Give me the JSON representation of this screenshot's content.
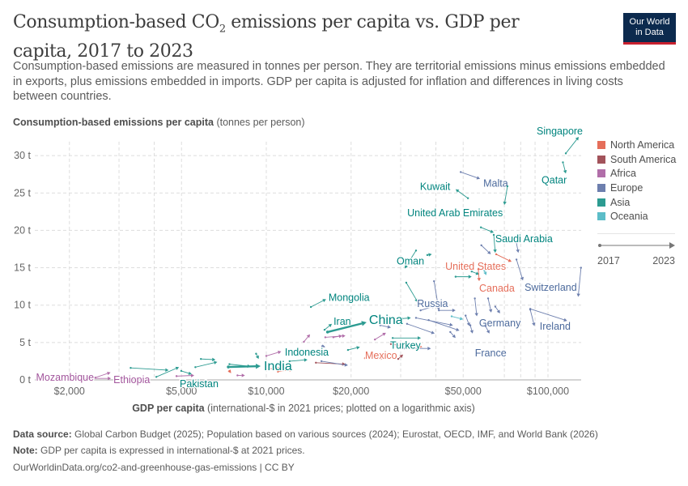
{
  "header": {
    "title_pre": "Consumption-based CO",
    "title_sub": "2",
    "title_post": " emissions per capita vs. GDP per capita, 2017 to 2023",
    "subtitle": "Consumption-based emissions are measured in tonnes per person. They are territorial emissions minus emissions embedded in exports, plus emissions embedded in imports. GDP per capita is adjusted for inflation and differences in living costs between countries.",
    "logo_line1": "Our World",
    "logo_line2": "in Data"
  },
  "footer": {
    "source_label": "Data source:",
    "source": " Global Carbon Budget (2025); Population based on various sources (2024); Eurostat, OECD, IMF, and World Bank (2026)",
    "note_label": "Note:",
    "note": " GDP per capita is expressed in international-$ at 2021 prices.",
    "link": "OurWorldinData.org/co2-and-greenhouse-gas-emissions | CC BY"
  },
  "legend": {
    "items": [
      {
        "label": "North America",
        "color": "#e56e5a"
      },
      {
        "label": "South America",
        "color": "#a2535b"
      },
      {
        "label": "Africa",
        "color": "#b16ea9"
      },
      {
        "label": "Europe",
        "color": "#6d7fae"
      },
      {
        "label": "Asia",
        "color": "#2c9b91"
      },
      {
        "label": "Oceania",
        "color": "#5cbdc8"
      }
    ],
    "timeline_start": "2017",
    "timeline_end": "2023"
  },
  "chart_data": {
    "type": "scatter",
    "subtype": "connected arrows (start year to end year)",
    "ylabel_bold": "Consumption-based emissions per capita",
    "ylabel_rest": " (tonnes per person)",
    "xlabel_bold": "GDP per capita",
    "xlabel_rest": " (international-$ in 2021 prices; plotted on a logarithmic axis)",
    "x_scale": "log",
    "xlim": [
      1500,
      131000
    ],
    "ylim": [
      0,
      31
    ],
    "grid": true,
    "legend_position": "right",
    "x_ticks": [
      {
        "value": 2000,
        "label": "$2,000"
      },
      {
        "value": 5000,
        "label": "$5,000"
      },
      {
        "value": 10000,
        "label": "$10,000"
      },
      {
        "value": 20000,
        "label": "$20,000"
      },
      {
        "value": 50000,
        "label": "$50,000"
      },
      {
        "value": 100000,
        "label": "$100,000"
      }
    ],
    "x_grid": [
      2000,
      3000,
      4000,
      5000,
      10000,
      20000,
      30000,
      40000,
      50000,
      70000,
      80000,
      90000,
      100000
    ],
    "y_ticks": [
      {
        "value": 0,
        "label": "0 t"
      },
      {
        "value": 5,
        "label": "5 t"
      },
      {
        "value": 10,
        "label": "10 t"
      },
      {
        "value": 15,
        "label": "15 t"
      },
      {
        "value": 20,
        "label": "20 t"
      },
      {
        "value": 25,
        "label": "25 t"
      },
      {
        "value": 30,
        "label": "30 t"
      }
    ],
    "series": [
      {
        "name": "Singapore",
        "region": "Asia",
        "x": [
          115700,
          128600
        ],
        "y": [
          30.3,
          32.5
        ]
      },
      {
        "name": "Qatar",
        "region": "Asia",
        "x": [
          113000,
          115700
        ],
        "y": [
          29.1,
          27.6
        ]
      },
      {
        "name": "Malta",
        "region": "Europe",
        "x": [
          49000,
          57400
        ],
        "y": [
          27.8,
          26.9
        ]
      },
      {
        "name": "Kuwait",
        "region": "Asia",
        "x": [
          52000,
          47000
        ],
        "y": [
          24.3,
          25.5
        ]
      },
      {
        "name": "United Arab Emirates",
        "region": "Asia",
        "x": [
          71800,
          70000
        ],
        "y": [
          25.9,
          23.4
        ]
      },
      {
        "name": "Saudi Arabia",
        "region": "Asia",
        "x": [
          64200,
          65000
        ],
        "y": [
          19.4,
          17.0
        ]
      },
      {
        "name": "United States",
        "region": "North America",
        "x": [
          65500,
          74300
        ],
        "y": [
          16.8,
          15.8
        ]
      },
      {
        "name": "Canada",
        "region": "North America",
        "x": [
          56600,
          57000
        ],
        "y": [
          14.8,
          13.2
        ]
      },
      {
        "name": "Switzerland",
        "region": "Europe",
        "x": [
          77300,
          81500
        ],
        "y": [
          16.1,
          13.3
        ]
      },
      {
        "name": "Ireland",
        "region": "Europe",
        "x": [
          86500,
          117000
        ],
        "y": [
          9.5,
          7.9
        ]
      },
      {
        "name": "Oman",
        "region": "Asia",
        "x": [
          34000,
          31000
        ],
        "y": [
          17.3,
          14.9
        ]
      },
      {
        "name": "Mongolia",
        "region": "Asia",
        "x": [
          14400,
          16300
        ],
        "y": [
          9.75,
          10.8
        ]
      },
      {
        "name": "Iran",
        "region": "Asia",
        "x": [
          16100,
          17100
        ],
        "y": [
          6.7,
          7.5
        ]
      },
      {
        "name": "China",
        "region": "Asia",
        "x": [
          16500,
          22700
        ],
        "y": [
          6.4,
          7.7
        ],
        "emphasis": true
      },
      {
        "name": "Russia",
        "region": "Europe",
        "x": [
          39400,
          41000
        ],
        "y": [
          13.2,
          9.3
        ]
      },
      {
        "name": "Germany",
        "region": "Europe",
        "x": [
          61300,
          62900
        ],
        "y": [
          10.9,
          9.0
        ]
      },
      {
        "name": "France",
        "region": "Europe",
        "x": [
          60000,
          62000
        ],
        "y": [
          7.2,
          6.2
        ]
      },
      {
        "name": "Turkey",
        "region": "Asia",
        "x": [
          28100,
          35400
        ],
        "y": [
          5.6,
          5.6
        ]
      },
      {
        "name": "Mexico",
        "region": "North America",
        "x": [
          22400,
          26100
        ],
        "y": [
          2.9,
          2.9
        ]
      },
      {
        "name": "India",
        "region": "Asia",
        "x": [
          7330,
          9550
        ],
        "y": [
          1.73,
          1.84
        ],
        "emphasis": true
      },
      {
        "name": "Indonesia",
        "region": "Asia",
        "x": [
          12100,
          14000
        ],
        "y": [
          2.5,
          2.7
        ]
      },
      {
        "name": "Pakistan",
        "region": "Asia",
        "x": [
          4990,
          5440
        ],
        "y": [
          1.2,
          0.76
        ]
      },
      {
        "name": "Ethiopia",
        "region": "Africa",
        "x": [
          2230,
          2810
        ],
        "y": [
          0.2,
          0.2
        ]
      },
      {
        "name": "Mozambique",
        "region": "Africa",
        "x": [
          1610,
          1670
        ],
        "y": [
          0.1,
          0.12
        ]
      },
      {
        "region": "Asia",
        "x": [
          31400,
          34500
        ],
        "y": [
          13,
          10.4
        ]
      },
      {
        "region": "Europe",
        "x": [
          35300,
          39800
        ],
        "y": [
          9.3,
          9.9
        ]
      },
      {
        "region": "Europe",
        "x": [
          41000,
          47000
        ],
        "y": [
          9.3,
          9.3
        ]
      },
      {
        "region": "Europe",
        "x": [
          34000,
          46000
        ],
        "y": [
          8.3,
          7.3
        ]
      },
      {
        "region": "Europe",
        "x": [
          31600,
          39600
        ],
        "y": [
          7.5,
          6.2
        ]
      },
      {
        "region": "Europe",
        "x": [
          25400,
          27700
        ],
        "y": [
          7.3,
          7.0
        ]
      },
      {
        "region": "Oceania",
        "x": [
          45500,
          50000
        ],
        "y": [
          8.5,
          8.1
        ]
      },
      {
        "region": "Europe",
        "x": [
          51000,
          52700
        ],
        "y": [
          8.6,
          7.2
        ]
      },
      {
        "region": "Europe",
        "x": [
          45000,
          47000
        ],
        "y": [
          6.4,
          5.6
        ]
      },
      {
        "region": "Europe",
        "x": [
          53000,
          54000
        ],
        "y": [
          7.3,
          6.2
        ]
      },
      {
        "region": "Europe",
        "x": [
          37700,
          48500
        ],
        "y": [
          8.0,
          6.6
        ]
      },
      {
        "region": "Africa",
        "x": [
          24300,
          26600
        ],
        "y": [
          5.4,
          6.3
        ]
      },
      {
        "region": "South America",
        "x": [
          27700,
          29600
        ],
        "y": [
          4.8,
          4.6
        ]
      },
      {
        "region": "North America",
        "x": [
          31600,
          35800
        ],
        "y": [
          4.8,
          4.4
        ]
      },
      {
        "region": "South America",
        "x": [
          29400,
          30600
        ],
        "y": [
          2.8,
          3.4
        ]
      },
      {
        "region": "Europe",
        "x": [
          31000,
          38400
        ],
        "y": [
          4.2,
          4.2
        ]
      },
      {
        "region": "Asia",
        "x": [
          19500,
          21500
        ],
        "y": [
          4.0,
          4.4
        ]
      },
      {
        "region": "Europe",
        "x": [
          15800,
          16200
        ],
        "y": [
          4.5,
          4.4
        ]
      },
      {
        "region": "South America",
        "x": [
          15000,
          19100
        ],
        "y": [
          2.3,
          2.1
        ]
      },
      {
        "region": "Europe",
        "x": [
          15700,
          19500
        ],
        "y": [
          2.5,
          1.95
        ]
      },
      {
        "region": "North America",
        "x": [
          11000,
          12400
        ],
        "y": [
          1.1,
          1.4
        ]
      },
      {
        "region": "Africa",
        "x": [
          13600,
          14300
        ],
        "y": [
          5.1,
          6.1
        ]
      },
      {
        "region": "Africa",
        "x": [
          16200,
          19100
        ],
        "y": [
          5.7,
          5.9
        ]
      },
      {
        "region": "Asia",
        "x": [
          30400,
          32600
        ],
        "y": [
          8.2,
          8.3
        ]
      },
      {
        "region": "Asia",
        "x": [
          3300,
          4500
        ],
        "y": [
          1.6,
          1.3
        ]
      },
      {
        "region": "Asia",
        "x": [
          4070,
          4900
        ],
        "y": [
          0.4,
          1.7
        ]
      },
      {
        "region": "Asia",
        "x": [
          5600,
          6700
        ],
        "y": [
          1.7,
          2.4
        ]
      },
      {
        "region": "Asia",
        "x": [
          5860,
          6600
        ],
        "y": [
          2.8,
          2.7
        ]
      },
      {
        "region": "Asia",
        "x": [
          7400,
          8800
        ],
        "y": [
          2.1,
          1.8
        ]
      },
      {
        "region": "Africa",
        "x": [
          4800,
          5550
        ],
        "y": [
          0.5,
          0.6
        ]
      },
      {
        "region": "Africa",
        "x": [
          7900,
          8400
        ],
        "y": [
          0.6,
          0.6
        ]
      },
      {
        "region": "North America",
        "x": [
          10000,
          11300
        ],
        "y": [
          1.5,
          1.5
        ]
      },
      {
        "region": "North America",
        "x": [
          7400,
          7500
        ],
        "y": [
          1.2,
          0.9
        ]
      },
      {
        "region": "Africa",
        "x": [
          10000,
          11300
        ],
        "y": [
          3.2,
          3.8
        ]
      },
      {
        "region": "Asia",
        "x": [
          9200,
          9400
        ],
        "y": [
          3.5,
          2.8
        ]
      },
      {
        "region": "Africa",
        "x": [
          17300,
          18600
        ],
        "y": [
          5.7,
          5.9
        ]
      },
      {
        "region": "Africa",
        "x": [
          2470,
          2800
        ],
        "y": [
          0.3,
          1.0
        ]
      },
      {
        "region": "Asia",
        "x": [
          47000,
          53600
        ],
        "y": [
          13.8,
          13.8
        ]
      },
      {
        "region": "Asia",
        "x": [
          53600,
          57000
        ],
        "y": [
          14.5,
          14.1
        ]
      },
      {
        "region": "Oceania",
        "x": [
          59500,
          60400
        ],
        "y": [
          14.6,
          14.0
        ]
      },
      {
        "region": "Asia",
        "x": [
          37300,
          38700
        ],
        "y": [
          16.7,
          16.8
        ]
      },
      {
        "region": "Europe",
        "x": [
          55000,
          55900
        ],
        "y": [
          10.9,
          8.5
        ]
      },
      {
        "region": "Europe",
        "x": [
          65000,
          67600
        ],
        "y": [
          9.8,
          8.9
        ]
      },
      {
        "region": "Europe",
        "x": [
          86500,
          89500
        ],
        "y": [
          9.4,
          7.2
        ]
      },
      {
        "region": "Europe",
        "x": [
          131000,
          128000
        ],
        "y": [
          15.0,
          11.1
        ]
      },
      {
        "region": "Asia",
        "x": [
          57800,
          64200
        ],
        "y": [
          20.4,
          19.7
        ]
      },
      {
        "region": "Europe",
        "x": [
          58000,
          62700
        ],
        "y": [
          18.0,
          16.8
        ]
      },
      {
        "region": "Europe",
        "x": [
          77000,
          78500
        ],
        "y": [
          18.6,
          17.0
        ]
      }
    ]
  }
}
